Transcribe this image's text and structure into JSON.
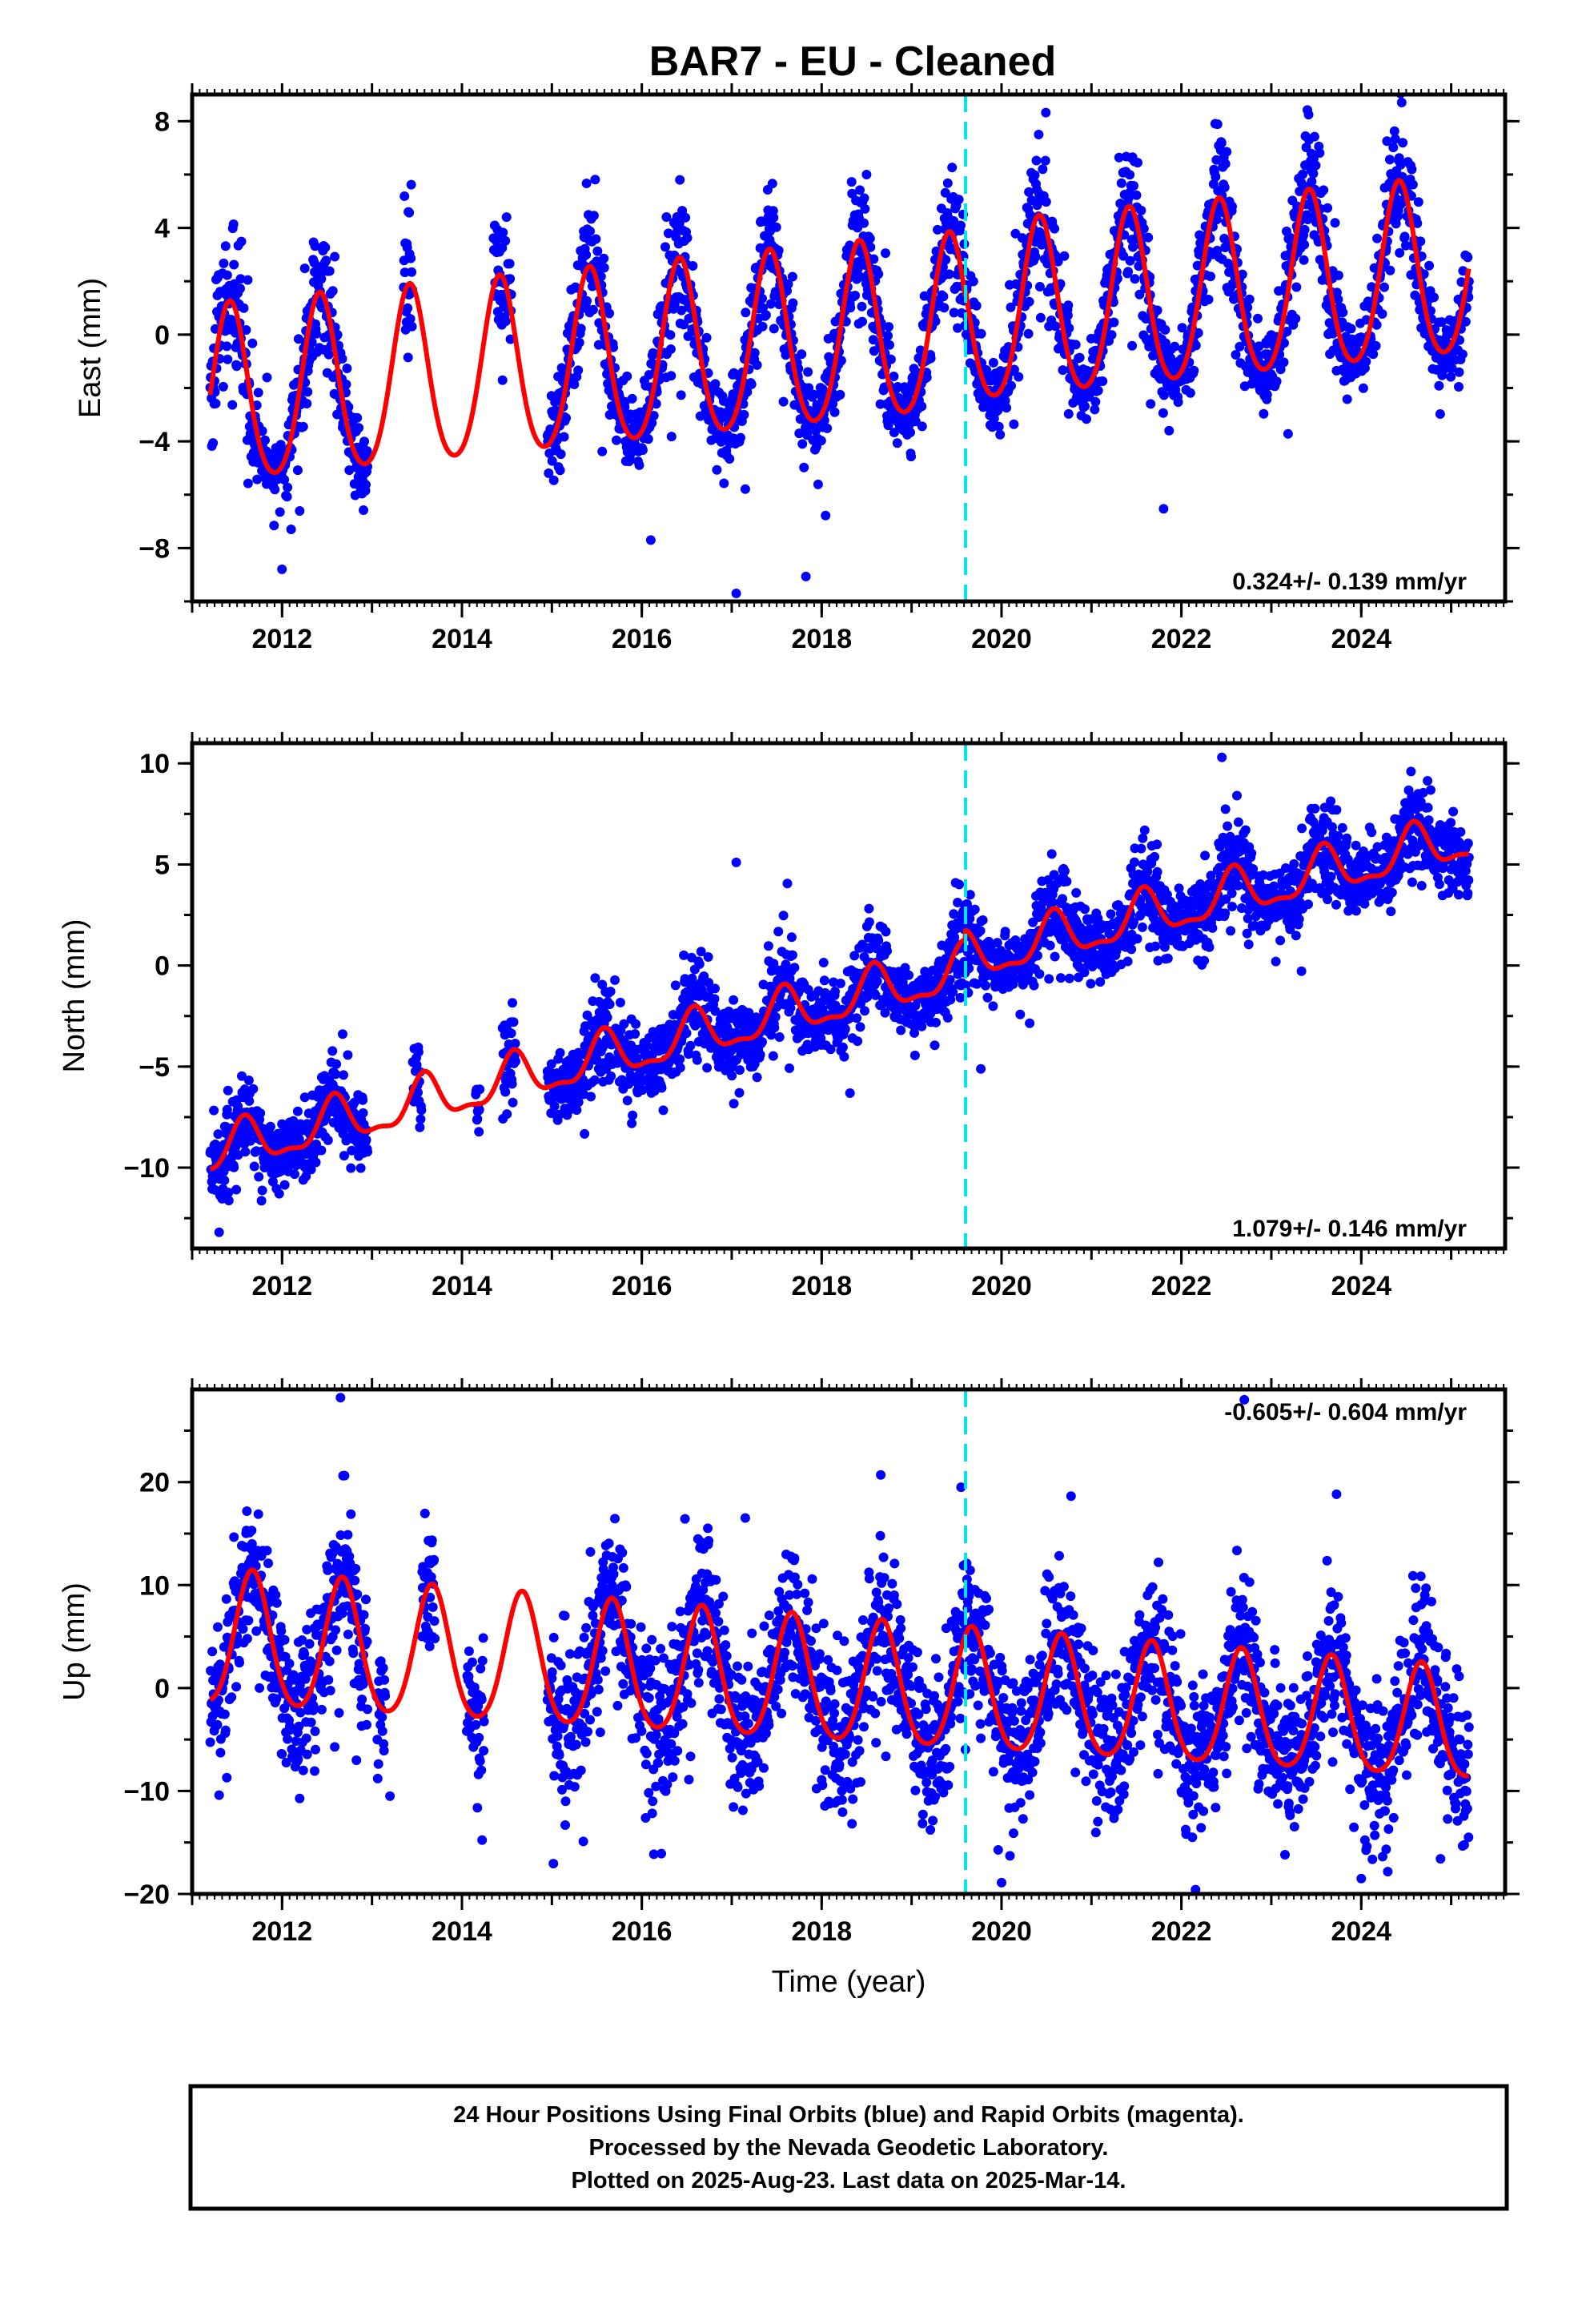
{
  "title": "BAR7  - EU - Cleaned",
  "footer": {
    "lines": [
      "24 Hour Positions Using Final Orbits (blue) and Rapid Orbits (magenta).",
      "Processed by the Nevada Geodetic Laboratory.",
      "Plotted on 2025-Aug-23. Last data on 2025-Mar-14."
    ]
  },
  "colors": {
    "final_orbits": "#0000ff",
    "rapid_orbits": "#ff00ff",
    "model": "#ff0000",
    "event_line": "#00e5ee",
    "frame": "#000000"
  },
  "chart_data": [
    {
      "type": "scatter",
      "name": "east",
      "ylabel": "East (mm)",
      "xlabel": "",
      "xlim": [
        2011.0,
        2025.6
      ],
      "ylim": [
        -10.0,
        9.0
      ],
      "xticks": [
        2012,
        2014,
        2016,
        2018,
        2020,
        2022,
        2024
      ],
      "xtick_labels": [
        "2012",
        "2014",
        "2016",
        "2018",
        "2020",
        "2022",
        "2024"
      ],
      "yticks": [
        -8,
        -4,
        0,
        4,
        8
      ],
      "ytick_labels": [
        "−8",
        "−4",
        "0",
        "4",
        "8"
      ],
      "rate_label": "0.324+/- 0.139 mm/yr",
      "rate_position": "bottom-right",
      "event_line_x": 2019.6,
      "model": {
        "offset": -2.5,
        "rate": 0.324,
        "rate_ref_year": 2011.2,
        "annual_amp": 3.3,
        "annual_amp_change": 0.0,
        "annual_phase_year": 2011.42,
        "semiannual_amp": 0.4,
        "segment_offsets": [
          [
            2019.6,
            0.3
          ]
        ]
      },
      "scatter": {
        "noise": 1.0,
        "spread_change": 0.35,
        "data_ranges": [
          [
            2011.2,
            2012.95
          ],
          [
            2013.35,
            2013.45
          ],
          [
            2014.35,
            2014.55
          ],
          [
            2014.95,
            2025.2
          ]
        ],
        "outliers": [
          [
            2017.05,
            -9.7
          ],
          [
            2024.45,
            8.7
          ],
          [
            2012.1,
            -7.3
          ],
          [
            2016.1,
            -7.7
          ]
        ]
      }
    },
    {
      "type": "scatter",
      "name": "north",
      "ylabel": "North (mm)",
      "xlabel": "",
      "xlim": [
        2011.0,
        2025.6
      ],
      "ylim": [
        -14.0,
        11.0
      ],
      "xticks": [
        2012,
        2014,
        2016,
        2018,
        2020,
        2022,
        2024
      ],
      "xtick_labels": [
        "2012",
        "2014",
        "2016",
        "2018",
        "2020",
        "2022",
        "2024"
      ],
      "yticks": [
        -10,
        -5,
        0,
        5,
        10
      ],
      "ytick_labels": [
        "−10",
        "−5",
        "0",
        "5",
        "10"
      ],
      "rate_label": "1.079+/- 0.146 mm/yr",
      "rate_position": "bottom-right",
      "event_line_x": 2019.6,
      "model": {
        "offset": -9.3,
        "rate": 1.079,
        "rate_ref_year": 2011.2,
        "annual_amp": 1.1,
        "annual_amp_change": 0.0,
        "annual_phase_year": 2011.58,
        "semiannual_amp": 0.4,
        "segment_offsets": [
          [
            2019.6,
            0.5
          ]
        ]
      },
      "scatter": {
        "noise": 1.0,
        "spread_change": 0.25,
        "data_ranges": [
          [
            2011.2,
            2012.95
          ],
          [
            2013.45,
            2013.55
          ],
          [
            2014.15,
            2014.2
          ],
          [
            2014.45,
            2014.6
          ],
          [
            2014.95,
            2025.2
          ]
        ],
        "outliers": [
          [
            2017.05,
            5.1
          ],
          [
            2011.3,
            -13.2
          ],
          [
            2022.45,
            10.3
          ],
          [
            2023.05,
            0.2
          ]
        ]
      }
    },
    {
      "type": "scatter",
      "name": "up",
      "ylabel": "Up (mm)",
      "xlabel": "Time (year)",
      "xlim": [
        2011.0,
        2025.6
      ],
      "ylim": [
        -20.0,
        29.0
      ],
      "xticks": [
        2012,
        2014,
        2016,
        2018,
        2020,
        2022,
        2024
      ],
      "xtick_labels": [
        "2012",
        "2014",
        "2016",
        "2018",
        "2020",
        "2022",
        "2024"
      ],
      "yticks": [
        -20,
        -10,
        0,
        10,
        20
      ],
      "ytick_labels": [
        "−20",
        "−10",
        "0",
        "10",
        "20"
      ],
      "rate_label": "-0.605+/- 0.604 mm/yr",
      "rate_position": "top-right",
      "event_line_x": 2019.6,
      "model": {
        "offset": 4.5,
        "rate": -0.605,
        "rate_ref_year": 2011.2,
        "annual_amp": 6.5,
        "annual_amp_change": -0.08,
        "annual_phase_year": 2011.67,
        "semiannual_amp": 0.8,
        "segment_offsets": []
      },
      "scatter": {
        "noise": 3.6,
        "spread_change": 0.0,
        "data_ranges": [
          [
            2011.2,
            2012.95
          ],
          [
            2013.05,
            2013.15
          ],
          [
            2013.55,
            2013.7
          ],
          [
            2014.05,
            2014.25
          ],
          [
            2014.95,
            2025.2
          ]
        ],
        "outliers": [
          [
            2012.65,
            28.2
          ],
          [
            2022.7,
            28.0
          ],
          [
            2019.55,
            19.5
          ],
          [
            2020.0,
            -18.9
          ],
          [
            2024.0,
            -18.5
          ],
          [
            2011.3,
            -10.4
          ],
          [
            2013.2,
            -10.5
          ]
        ]
      }
    }
  ]
}
